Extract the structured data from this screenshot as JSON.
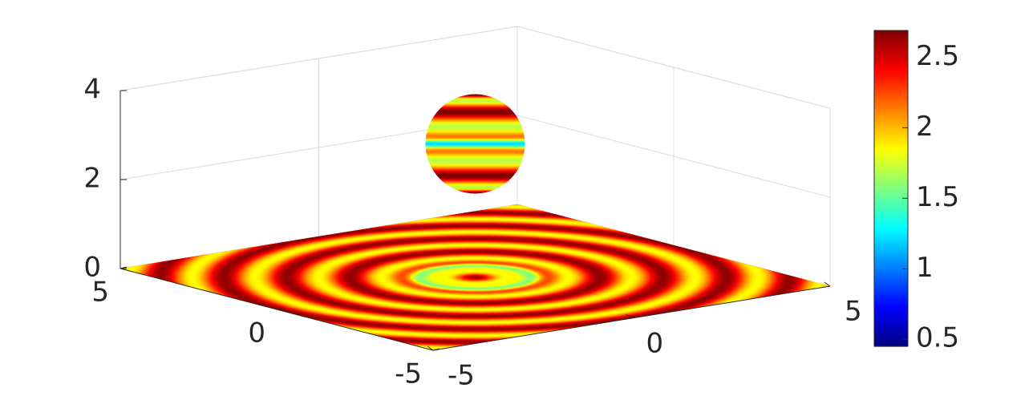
{
  "chart_data": {
    "type": "surface",
    "xlim": [
      -5,
      5
    ],
    "xticks": [
      -5,
      0,
      5
    ],
    "ylim": [
      -5,
      5
    ],
    "yticks": [
      -5,
      0,
      5
    ],
    "zlim": [
      0,
      4
    ],
    "zticks": [
      0,
      2,
      4
    ],
    "grid": true,
    "colormap": "jet",
    "colorbar": {
      "clim": [
        0.45,
        2.69
      ],
      "ticks": [
        0.5,
        1,
        1.5,
        2,
        2.5
      ]
    }
  }
}
